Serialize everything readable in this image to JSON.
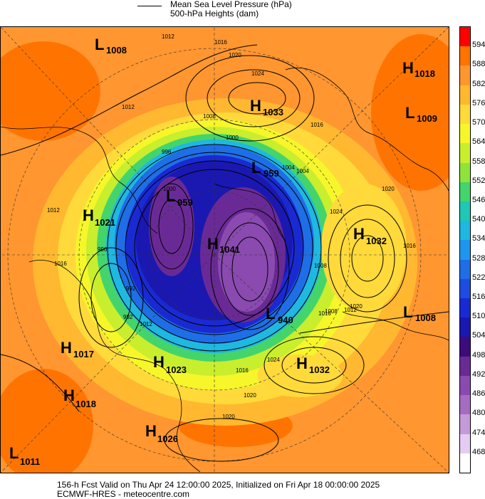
{
  "legend": {
    "line1": "Mean Sea Level Pressure (hPa)",
    "line2": "500-hPa Heights (dam)"
  },
  "colorbar": {
    "ticks": [
      "594",
      "588",
      "582",
      "576",
      "570",
      "564",
      "558",
      "552",
      "546",
      "540",
      "534",
      "528",
      "522",
      "516",
      "510",
      "504",
      "498",
      "492",
      "486",
      "480",
      "474",
      "468"
    ],
    "colors": [
      "#ff0000",
      "#ff7400",
      "#ff9630",
      "#ffb830",
      "#ffda3a",
      "#f6f62a",
      "#c8ee2e",
      "#8ee43c",
      "#44d46c",
      "#1ec8b4",
      "#1eb8e0",
      "#1e96ee",
      "#1e6ee6",
      "#1e4ce0",
      "#1a2ad2",
      "#1a18b0",
      "#3c0c7c",
      "#6a2a96",
      "#8a4ab0",
      "#a66cc2",
      "#c49ad8",
      "#e4ccf2",
      "#ffffff"
    ]
  },
  "systems": [
    {
      "type": "L",
      "value": "1008",
      "name": "low-1008-northwest"
    },
    {
      "type": "H",
      "value": "1033",
      "name": "high-1033-north"
    },
    {
      "type": "H",
      "value": "1018",
      "name": "high-1018-northeast"
    },
    {
      "type": "L",
      "value": "1009",
      "name": "low-1009-east"
    },
    {
      "type": "L",
      "value": "959",
      "name": "low-959-north-central"
    },
    {
      "type": "L",
      "value": "959",
      "name": "low-959-west-central"
    },
    {
      "type": "H",
      "value": "1021",
      "name": "high-1021-west"
    },
    {
      "type": "H",
      "value": "1041",
      "name": "high-1041-pole"
    },
    {
      "type": "H",
      "value": "1032",
      "name": "high-1032-east"
    },
    {
      "type": "L",
      "value": "940",
      "name": "low-940-south-central"
    },
    {
      "type": "L",
      "value": "1008",
      "name": "low-1008-southeast"
    },
    {
      "type": "H",
      "value": "1017",
      "name": "high-1017-southwest"
    },
    {
      "type": "H",
      "value": "1023",
      "name": "high-1023-south"
    },
    {
      "type": "H",
      "value": "1032",
      "name": "high-1032-south-east"
    },
    {
      "type": "H",
      "value": "1018",
      "name": "high-1018-southwest"
    },
    {
      "type": "H",
      "value": "1026",
      "name": "high-1026-south"
    },
    {
      "type": "L",
      "value": "1011",
      "name": "low-1011-corner"
    }
  ],
  "isobar_labels": [
    "1012",
    "1016",
    "1020",
    "1024",
    "1012",
    "1008",
    "1016",
    "1000",
    "1004",
    "1024",
    "1020",
    "1016",
    "996",
    "992",
    "1012",
    "1016",
    "1020",
    "1008",
    "1000",
    "996",
    "992",
    "1012",
    "1016",
    "1024",
    "1020",
    "1012",
    "1008",
    "1004",
    "1016",
    "1020"
  ],
  "footer": {
    "line1": "156-h Fcst Valid on Thu Apr 24 12:00:00 2025, Initialized on Fri Apr 18 00:00:00 2025",
    "line2": "ECMWF-HRES - meteocentre.com"
  }
}
